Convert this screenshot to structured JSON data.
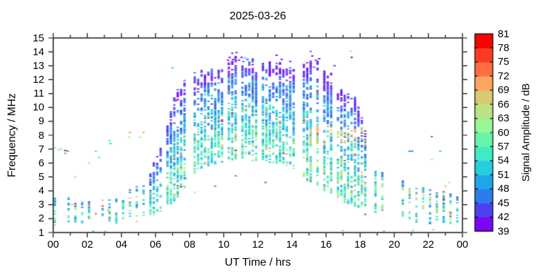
{
  "chart_data": {
    "type": "scatter",
    "title": "2025-03-26",
    "xlabel": "UT Time / hrs",
    "ylabel": "Frequency / MHz",
    "xlim": [
      0,
      24
    ],
    "ylim": [
      1,
      15
    ],
    "xtick_labels": [
      "00",
      "02",
      "04",
      "06",
      "08",
      "10",
      "12",
      "14",
      "16",
      "18",
      "20",
      "22",
      "00"
    ],
    "xtick_hours": [
      0,
      2,
      4,
      6,
      8,
      10,
      12,
      14,
      16,
      18,
      20,
      22,
      24
    ],
    "ytick_labels": [
      "1",
      "2",
      "3",
      "4",
      "5",
      "6",
      "7",
      "8",
      "9",
      "10",
      "11",
      "12",
      "13",
      "14",
      "15"
    ],
    "ytick_values": [
      1,
      2,
      3,
      4,
      5,
      6,
      7,
      8,
      9,
      10,
      11,
      12,
      13,
      14,
      15
    ],
    "grid": false,
    "colorbar": {
      "label": "Signal Amplitude / dB",
      "min": 39,
      "max": 81,
      "step": 3,
      "tick_labels": [
        "39",
        "42",
        "45",
        "48",
        "51",
        "54",
        "57",
        "60",
        "63",
        "66",
        "69",
        "72",
        "75",
        "78",
        "81"
      ],
      "colors": [
        "#7d05f2",
        "#4b41f0",
        "#2f7bed",
        "#20a6e7",
        "#27cdde",
        "#40eac7",
        "#68f4ab",
        "#99f699",
        "#bae386",
        "#d8c973",
        "#fba55e",
        "#fb6e42",
        "#fa3b23",
        "#f50400"
      ]
    },
    "sampling": {
      "time_step_hrs": 0.2,
      "freq_step_mhz": 0.1,
      "seed": 20250326,
      "day_enter": 0.45,
      "day_stay": 0.78,
      "night_enter": 0.35,
      "night_stay": 0.7,
      "night_before_hr": 5.7,
      "night_after_hr": 18.7
    },
    "envelope_hi": [
      [
        0,
        3.6
      ],
      [
        1,
        3.5
      ],
      [
        2,
        3.4
      ],
      [
        3,
        3.3
      ],
      [
        3.8,
        3.5
      ],
      [
        4.5,
        4.0
      ],
      [
        5.2,
        4.6
      ],
      [
        6.0,
        6.3
      ],
      [
        6.6,
        8.6
      ],
      [
        7.2,
        10.8
      ],
      [
        8.0,
        12.1
      ],
      [
        9.0,
        12.5
      ],
      [
        10.0,
        13.1
      ],
      [
        10.8,
        13.5
      ],
      [
        11.5,
        13.4
      ],
      [
        12.2,
        12.9
      ],
      [
        13.0,
        13.3
      ],
      [
        13.8,
        12.7
      ],
      [
        14.8,
        13.1
      ],
      [
        15.6,
        13.2
      ],
      [
        16.2,
        12.4
      ],
      [
        17.0,
        11.3
      ],
      [
        17.8,
        10.3
      ],
      [
        18.2,
        9.0
      ],
      [
        18.6,
        6.8
      ],
      [
        19.0,
        5.6
      ],
      [
        20.0,
        5.0
      ],
      [
        21.0,
        4.4
      ],
      [
        22.0,
        4.0
      ],
      [
        23.0,
        3.9
      ],
      [
        24,
        3.7
      ]
    ],
    "envelope_lo": [
      [
        0,
        1.7
      ],
      [
        2,
        1.7
      ],
      [
        4,
        1.8
      ],
      [
        5,
        1.9
      ],
      [
        6,
        2.3
      ],
      [
        6.8,
        3.0
      ],
      [
        7.4,
        3.4
      ],
      [
        8.0,
        5.2
      ],
      [
        9.0,
        5.9
      ],
      [
        10,
        6.2
      ],
      [
        11,
        6.3
      ],
      [
        12,
        6.3
      ],
      [
        13,
        6.1
      ],
      [
        14,
        5.8
      ],
      [
        14.6,
        5.1
      ],
      [
        15.2,
        4.5
      ],
      [
        16,
        3.9
      ],
      [
        17,
        3.3
      ],
      [
        18,
        2.9
      ],
      [
        19,
        2.2
      ],
      [
        20,
        1.9
      ],
      [
        21,
        1.8
      ],
      [
        22,
        1.6
      ],
      [
        23,
        1.6
      ],
      [
        24,
        1.6
      ]
    ],
    "outliers": [
      [
        0.1,
        7.1,
        63
      ],
      [
        0.45,
        7.0,
        58
      ],
      [
        0.3,
        6.95,
        60
      ],
      [
        0.7,
        6.9,
        79
      ],
      [
        0.7,
        6.7,
        52
      ],
      [
        0.85,
        6.85,
        46
      ],
      [
        1.3,
        5.0,
        63
      ],
      [
        2.1,
        6.0,
        63
      ],
      [
        2.5,
        6.85,
        54
      ],
      [
        2.7,
        6.4,
        54
      ],
      [
        3.3,
        7.6,
        54
      ],
      [
        3.35,
        7.4,
        53
      ],
      [
        4.5,
        8.2,
        69
      ],
      [
        5.3,
        8.2,
        69
      ],
      [
        4.45,
        7.85,
        60
      ],
      [
        5.1,
        7.85,
        60
      ],
      [
        2.5,
        2.35,
        74
      ],
      [
        3.2,
        2.6,
        70
      ],
      [
        1.1,
        3.0,
        68
      ],
      [
        2.35,
        1.1,
        55
      ],
      [
        3.05,
        1.1,
        57
      ],
      [
        17.0,
        1.15,
        57
      ],
      [
        19.4,
        1.1,
        56
      ],
      [
        21.1,
        1.15,
        54
      ],
      [
        22.3,
        1.2,
        57
      ],
      [
        7.0,
        12.85,
        52
      ],
      [
        7.2,
        10.5,
        41
      ],
      [
        10.25,
        13.4,
        40
      ],
      [
        10.35,
        13.6,
        39
      ],
      [
        10.5,
        13.9,
        42
      ],
      [
        10.55,
        13.45,
        41
      ],
      [
        10.7,
        13.65,
        39
      ],
      [
        10.75,
        13.95,
        44
      ],
      [
        10.9,
        13.4,
        40
      ],
      [
        11.05,
        13.6,
        39
      ],
      [
        11.15,
        13.3,
        46
      ],
      [
        11.25,
        13.55,
        51
      ],
      [
        11.4,
        13.45,
        42
      ],
      [
        13.4,
        13.45,
        40
      ],
      [
        15.2,
        13.7,
        40
      ],
      [
        15.4,
        13.4,
        42
      ],
      [
        15.6,
        13.5,
        40
      ],
      [
        15.3,
        12.9,
        45
      ],
      [
        16.5,
        13.0,
        42
      ],
      [
        17.45,
        14.05,
        60
      ],
      [
        17.5,
        13.6,
        40
      ],
      [
        7.75,
        4.9,
        46
      ],
      [
        8.3,
        3.9,
        60
      ],
      [
        12.45,
        4.6,
        47
      ],
      [
        20.9,
        6.85,
        45
      ],
      [
        21.05,
        6.85,
        47
      ],
      [
        22.2,
        7.9,
        45
      ],
      [
        22.7,
        6.85,
        52
      ],
      [
        22.2,
        6.25,
        60
      ],
      [
        23.0,
        4.35,
        68
      ],
      [
        23.2,
        4.6,
        60
      ]
    ]
  }
}
